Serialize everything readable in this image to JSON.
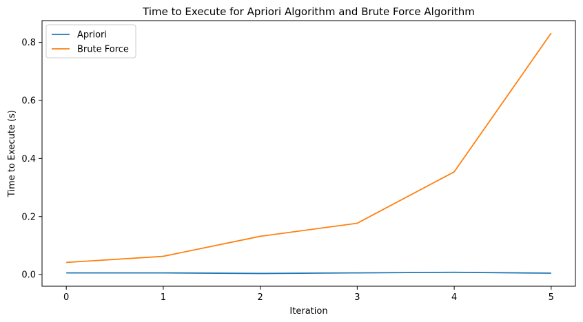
{
  "chart_data": {
    "type": "line",
    "title": "Time to Execute for Apriori Algorithm and Brute Force Algorithm",
    "xlabel": "Iteration",
    "ylabel": "Time to Execute (s)",
    "x": [
      0,
      1,
      2,
      3,
      4,
      5
    ],
    "xlim": [
      -0.25,
      5.25
    ],
    "ylim": [
      -0.04,
      0.875
    ],
    "xticks": [
      0,
      1,
      2,
      3,
      4,
      5
    ],
    "xtick_labels": [
      "0",
      "1",
      "2",
      "3",
      "4",
      "5"
    ],
    "yticks": [
      0.0,
      0.2,
      0.4,
      0.6,
      0.8
    ],
    "ytick_labels": [
      "0.0",
      "0.2",
      "0.4",
      "0.6",
      "0.8"
    ],
    "grid": false,
    "legend_position": "top-left",
    "series": [
      {
        "name": "Apriori",
        "color": "#1f77b4",
        "values": [
          0.006,
          0.006,
          0.004,
          0.006,
          0.008,
          0.005
        ]
      },
      {
        "name": "Brute Force",
        "color": "#ff7f0e",
        "values": [
          0.042,
          0.063,
          0.132,
          0.177,
          0.354,
          0.832
        ]
      }
    ]
  }
}
